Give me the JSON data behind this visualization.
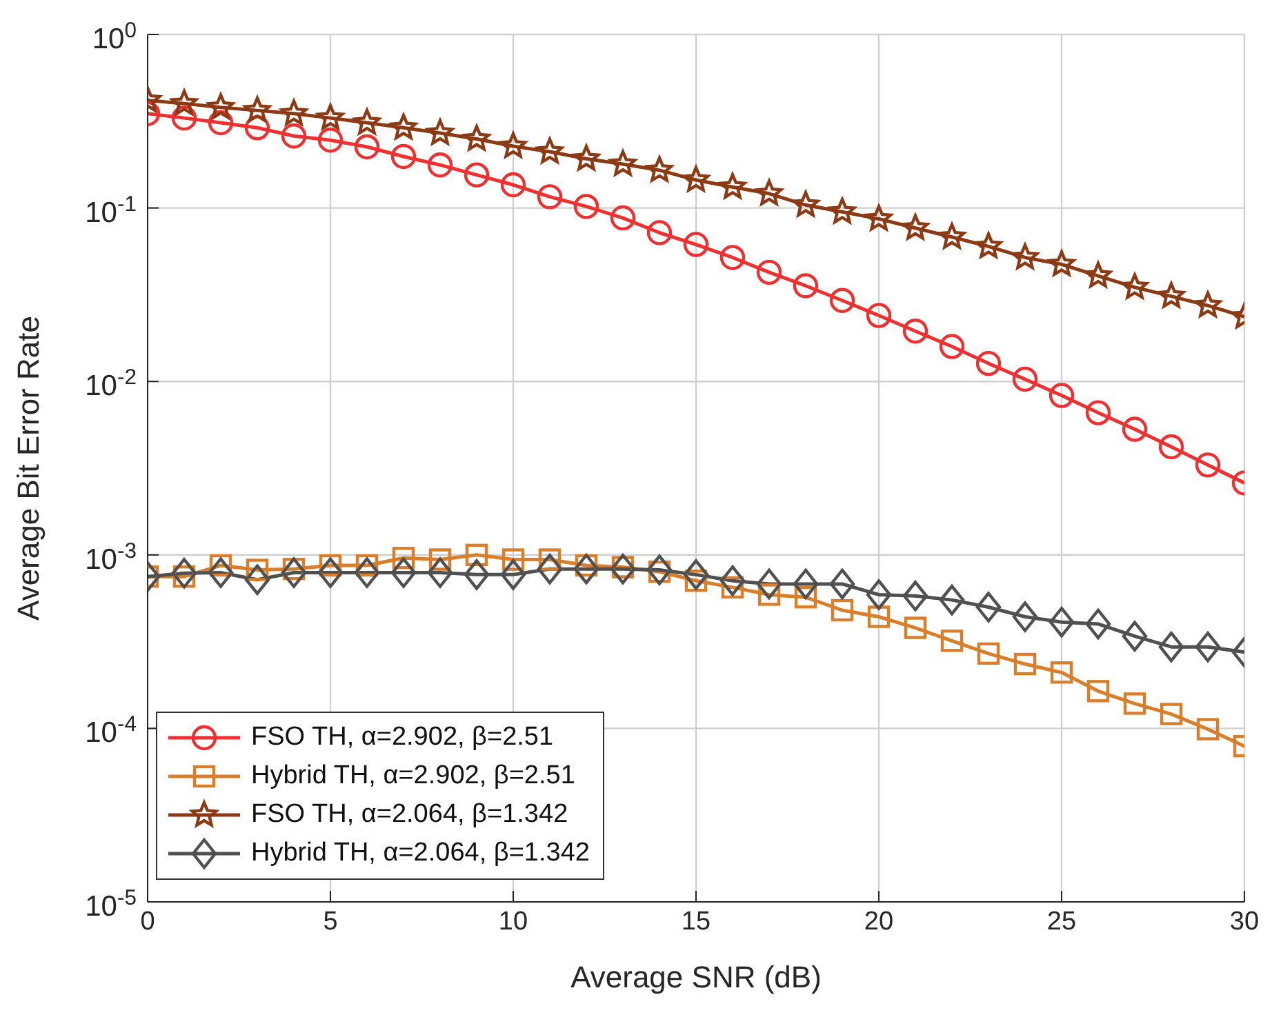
{
  "chart_data": {
    "type": "line",
    "xlabel": "Average SNR (dB)",
    "ylabel": "Average Bit Error Rate",
    "log": "y",
    "grid": true,
    "legend": "bottom left",
    "line_style": "solid",
    "x": [
      0,
      1,
      2,
      3,
      4,
      5,
      6,
      7,
      8,
      9,
      10,
      11,
      12,
      13,
      14,
      15,
      16,
      17,
      18,
      19,
      20,
      21,
      22,
      23,
      24,
      25,
      26,
      27,
      28,
      29,
      30
    ],
    "xlim": [
      0,
      30
    ],
    "xticks": [
      0,
      5,
      10,
      15,
      20,
      25,
      30
    ],
    "ylim": [
      1e-05,
      1
    ],
    "yticks": [
      {
        "value": 1e-05,
        "label": "10$^{-5}$"
      },
      {
        "value": 0.0001,
        "label": "10$^{-4}$"
      },
      {
        "value": 0.001,
        "label": "10$^{-3}$"
      },
      {
        "value": 0.01,
        "label": "10$^{-2}$"
      },
      {
        "value": 0.1,
        "label": "10$^{-1}$"
      },
      {
        "value": 1,
        "label": "10$^{0}$"
      }
    ],
    "series": [
      {
        "name": "FSO TH, α=2.902, β=2.51",
        "color": "#ee3030",
        "marker": "circle",
        "values": [
          0.35,
          0.33,
          0.31,
          0.29,
          0.26,
          0.246,
          0.225,
          0.198,
          0.177,
          0.155,
          0.136,
          0.116,
          0.102,
          0.0876,
          0.072,
          0.0616,
          0.0518,
          0.0426,
          0.0356,
          0.0293,
          0.024,
          0.0195,
          0.0159,
          0.0127,
          0.0103,
          0.0083,
          0.0066,
          0.0053,
          0.0042,
          0.0033,
          0.0026
        ]
      },
      {
        "name": "Hybrid TH, α=2.902, β=2.51",
        "color": "#d97e2a",
        "marker": "square",
        "values": [
          0.00075,
          0.00075,
          0.00087,
          0.00082,
          0.00083,
          0.00087,
          0.00087,
          0.00096,
          0.00094,
          0.001,
          0.00094,
          0.00094,
          0.00087,
          0.00085,
          0.0008,
          0.00071,
          0.00065,
          0.00059,
          0.00057,
          0.00048,
          0.00044,
          0.00038,
          0.00032,
          0.00027,
          0.000235,
          0.00021,
          0.000164,
          0.000139,
          0.000121,
          9.9e-05,
          7.9e-05
        ]
      },
      {
        "name": "FSO TH, α=2.064, β=1.342",
        "color": "#8b3a14",
        "marker": "star",
        "values": [
          0.417,
          0.4,
          0.38,
          0.365,
          0.35,
          0.33,
          0.31,
          0.29,
          0.27,
          0.25,
          0.227,
          0.211,
          0.192,
          0.179,
          0.165,
          0.145,
          0.132,
          0.121,
          0.104,
          0.095,
          0.0865,
          0.0766,
          0.068,
          0.06,
          0.0518,
          0.0473,
          0.0406,
          0.0349,
          0.031,
          0.0274,
          0.0236
        ]
      },
      {
        "name": "Hybrid TH, α=2.064, β=1.342",
        "color": "#505050",
        "marker": "diamond",
        "values": [
          0.00075,
          0.000785,
          0.00079,
          0.00072,
          0.00079,
          0.00079,
          0.00079,
          0.00079,
          0.00079,
          0.00077,
          0.00077,
          0.00083,
          0.00083,
          0.00083,
          0.00082,
          0.00077,
          0.00071,
          0.00068,
          0.00068,
          0.00068,
          0.00059,
          0.00058,
          0.00055,
          0.0005,
          0.00044,
          0.00041,
          0.0004,
          0.00034,
          0.000295,
          0.000295,
          0.000275
        ]
      }
    ]
  }
}
